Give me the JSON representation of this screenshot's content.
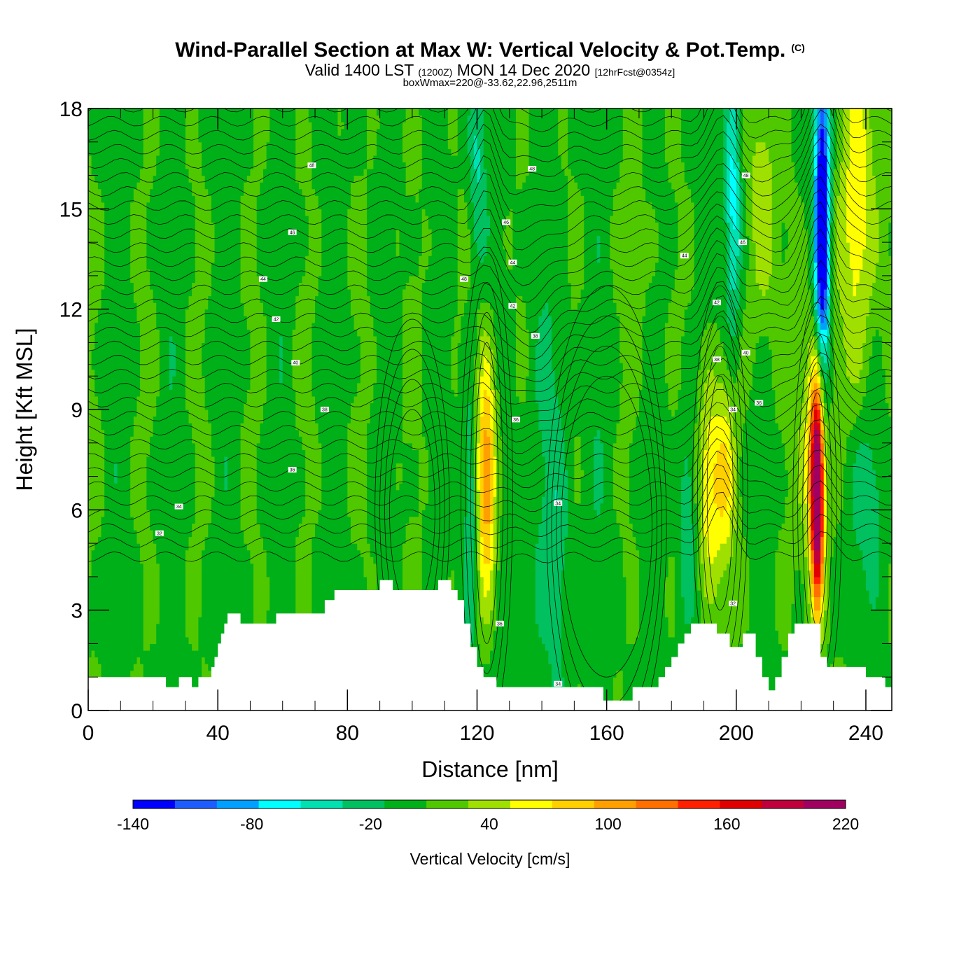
{
  "header": {
    "title": "Wind-Parallel Section at Max W: Vertical Velocity & Pot.Temp.",
    "copyright": "(C)",
    "valid_prefix": "Valid 1400 LST",
    "utc": "(1200Z)",
    "valid_date": "MON 14 Dec 2020",
    "forecast": "[12hrFcst@0354z]",
    "box_info": "boxWmax=220@-33.62,22.96,2511m"
  },
  "chart_data": {
    "type": "heatmap",
    "xlabel": "Distance [nm]",
    "ylabel": "Height [Kft MSL]",
    "xlim": [
      0,
      248
    ],
    "ylim": [
      0,
      18
    ],
    "x_ticks": [
      0,
      40,
      80,
      120,
      160,
      200,
      240
    ],
    "y_ticks": [
      0,
      3,
      6,
      9,
      12,
      15,
      18
    ],
    "colorbar": {
      "label": "Vertical Velocity [cm/s]",
      "range": [
        -140,
        220
      ],
      "step": 20,
      "tick_labels": [
        -140,
        -80,
        -20,
        40,
        100,
        160,
        220
      ],
      "colors": [
        "#0000ff",
        "#1d5cff",
        "#00a0ff",
        "#00ffff",
        "#00e0b0",
        "#00c060",
        "#00b018",
        "#50c800",
        "#a0e000",
        "#ffff00",
        "#ffd000",
        "#ffa000",
        "#ff7000",
        "#ff2000",
        "#e00000",
        "#c0003c",
        "#a00060"
      ]
    },
    "updrafts": [
      {
        "x": 123,
        "z_bottom": 2,
        "z_top": 11,
        "w_max": 120
      },
      {
        "x": 194,
        "z_bottom": 3,
        "z_top": 9,
        "w_max": 70
      },
      {
        "x": 225,
        "z_bottom": 3,
        "z_top": 9,
        "w_max": 220
      }
    ],
    "downdrafts": [
      {
        "x": 226,
        "z_bottom": 10,
        "z_top": 18,
        "w_min": -140
      },
      {
        "x": 200,
        "z_bottom": 10,
        "z_top": 18,
        "w_min": -80
      }
    ],
    "terrain": [
      [
        0,
        1.0
      ],
      [
        24,
        1.0
      ],
      [
        24,
        0.7
      ],
      [
        28,
        0.7
      ],
      [
        28,
        1.0
      ],
      [
        32,
        1.0
      ],
      [
        32,
        0.7
      ],
      [
        34,
        0.7
      ],
      [
        34,
        1.0
      ],
      [
        38,
        1.0
      ],
      [
        38,
        1.3
      ],
      [
        39,
        1.3
      ],
      [
        39,
        1.6
      ],
      [
        40,
        1.6
      ],
      [
        40,
        2.0
      ],
      [
        41,
        2.0
      ],
      [
        41,
        2.3
      ],
      [
        42,
        2.3
      ],
      [
        42,
        2.6
      ],
      [
        43,
        2.6
      ],
      [
        43,
        2.9
      ],
      [
        47,
        2.9
      ],
      [
        47,
        2.6
      ],
      [
        58,
        2.6
      ],
      [
        58,
        2.9
      ],
      [
        73,
        2.9
      ],
      [
        73,
        3.3
      ],
      [
        76,
        3.3
      ],
      [
        76,
        3.6
      ],
      [
        90,
        3.6
      ],
      [
        90,
        3.9
      ],
      [
        94,
        3.9
      ],
      [
        94,
        3.6
      ],
      [
        108,
        3.6
      ],
      [
        108,
        3.9
      ],
      [
        112,
        3.9
      ],
      [
        112,
        3.6
      ],
      [
        114,
        3.6
      ],
      [
        114,
        3.3
      ],
      [
        116,
        3.3
      ],
      [
        116,
        2.6
      ],
      [
        118,
        2.6
      ],
      [
        118,
        1.9
      ],
      [
        120,
        1.9
      ],
      [
        120,
        1.3
      ],
      [
        122,
        1.3
      ],
      [
        122,
        1.0
      ],
      [
        126,
        1.0
      ],
      [
        126,
        0.7
      ],
      [
        136,
        0.7
      ],
      [
        136,
        0.7
      ],
      [
        159,
        0.7
      ],
      [
        159,
        0.3
      ],
      [
        168,
        0.3
      ],
      [
        168,
        0.7
      ],
      [
        176,
        0.7
      ],
      [
        176,
        1.0
      ],
      [
        178,
        1.0
      ],
      [
        178,
        1.3
      ],
      [
        180,
        1.3
      ],
      [
        180,
        1.6
      ],
      [
        182,
        1.6
      ],
      [
        182,
        2.0
      ],
      [
        184,
        2.0
      ],
      [
        184,
        2.3
      ],
      [
        186,
        2.3
      ],
      [
        186,
        2.6
      ],
      [
        194,
        2.6
      ],
      [
        194,
        2.3
      ],
      [
        198,
        2.3
      ],
      [
        198,
        1.9
      ],
      [
        202,
        1.9
      ],
      [
        202,
        2.3
      ],
      [
        206,
        2.3
      ],
      [
        206,
        1.6
      ],
      [
        208,
        1.6
      ],
      [
        208,
        1.0
      ],
      [
        210,
        1.0
      ],
      [
        210,
        0.6
      ],
      [
        212,
        0.6
      ],
      [
        212,
        1.0
      ],
      [
        214,
        1.0
      ],
      [
        214,
        1.6
      ],
      [
        216,
        1.6
      ],
      [
        216,
        2.3
      ],
      [
        218,
        2.3
      ],
      [
        218,
        2.6
      ],
      [
        226,
        2.6
      ],
      [
        226,
        1.6
      ],
      [
        228,
        1.6
      ],
      [
        228,
        1.3
      ],
      [
        240,
        1.3
      ],
      [
        240,
        1.0
      ],
      [
        246,
        1.0
      ],
      [
        246,
        0.7
      ],
      [
        248,
        0.7
      ]
    ],
    "theta_contours": [
      {
        "level": 32,
        "label_x": 22,
        "label_z": 5.3
      },
      {
        "level": 34,
        "label_x": 28,
        "label_z": 6.1
      },
      {
        "level": 36,
        "label_x": 63,
        "label_z": 7.2
      },
      {
        "level": 38,
        "label_x": 73,
        "label_z": 9.0
      },
      {
        "level": 40,
        "label_x": 64,
        "label_z": 10.4
      },
      {
        "level": 42,
        "label_x": 58,
        "label_z": 11.7
      },
      {
        "level": 44,
        "label_x": 54,
        "label_z": 12.9
      },
      {
        "level": 46,
        "label_x": 63,
        "label_z": 14.3
      },
      {
        "level": 48,
        "label_x": 69,
        "label_z": 16.3
      }
    ],
    "contour_labels": [
      {
        "text": "32",
        "x": 22,
        "z": 5.3
      },
      {
        "text": "34",
        "x": 28,
        "z": 6.1
      },
      {
        "text": "36",
        "x": 63,
        "z": 7.2
      },
      {
        "text": "38",
        "x": 73,
        "z": 9.0
      },
      {
        "text": "40",
        "x": 64,
        "z": 10.4
      },
      {
        "text": "42",
        "x": 58,
        "z": 11.7
      },
      {
        "text": "44",
        "x": 54,
        "z": 12.9
      },
      {
        "text": "46",
        "x": 63,
        "z": 14.3
      },
      {
        "text": "48",
        "x": 69,
        "z": 16.3
      },
      {
        "text": "48",
        "x": 137,
        "z": 16.2
      },
      {
        "text": "46",
        "x": 129,
        "z": 14.6
      },
      {
        "text": "44",
        "x": 131,
        "z": 13.4
      },
      {
        "text": "42",
        "x": 131,
        "z": 12.1
      },
      {
        "text": "38",
        "x": 138,
        "z": 11.2
      },
      {
        "text": "36",
        "x": 132,
        "z": 8.7
      },
      {
        "text": "34",
        "x": 145,
        "z": 6.2
      },
      {
        "text": "36",
        "x": 127,
        "z": 2.6
      },
      {
        "text": "34",
        "x": 145,
        "z": 0.8
      },
      {
        "text": "48",
        "x": 116,
        "z": 12.9
      },
      {
        "text": "48",
        "x": 203,
        "z": 16.0
      },
      {
        "text": "46",
        "x": 202,
        "z": 14.0
      },
      {
        "text": "44",
        "x": 184,
        "z": 13.6
      },
      {
        "text": "42",
        "x": 194,
        "z": 12.2
      },
      {
        "text": "40",
        "x": 203,
        "z": 10.7
      },
      {
        "text": "38",
        "x": 194,
        "z": 10.5
      },
      {
        "text": "36",
        "x": 207,
        "z": 9.2
      },
      {
        "text": "34",
        "x": 199,
        "z": 9.0
      },
      {
        "text": "32",
        "x": 199,
        "z": 3.2
      }
    ]
  }
}
